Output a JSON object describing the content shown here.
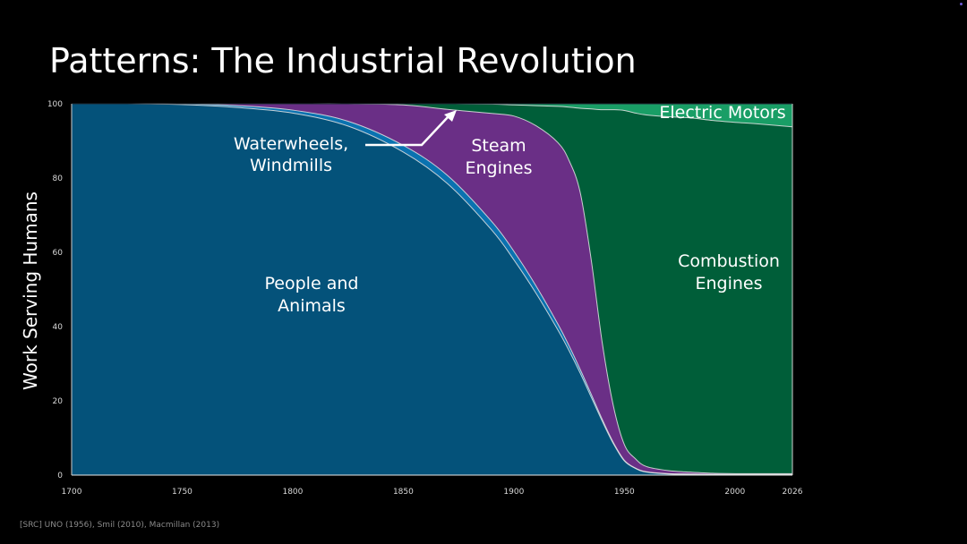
{
  "title": "Patterns: The Industrial Revolution",
  "source": "[SRC] UNO (1956), Smil (2010), Macmillan (2013)",
  "chart_data": {
    "type": "area",
    "stacked": true,
    "title": "Patterns: The Industrial Revolution",
    "ylabel": "Work Serving Humans",
    "xlabel": "",
    "xlim": [
      1700,
      2026
    ],
    "ylim": [
      0,
      100
    ],
    "x_ticks": [
      "1700",
      "1750",
      "1800",
      "1850",
      "1900",
      "1950",
      "2000",
      "2026"
    ],
    "y_ticks": [
      "0",
      "20",
      "40",
      "60",
      "80",
      "100"
    ],
    "x": [
      1700,
      1725,
      1750,
      1775,
      1800,
      1825,
      1850,
      1870,
      1890,
      1900,
      1910,
      1920,
      1925,
      1930,
      1935,
      1940,
      1945,
      1950,
      1955,
      1960,
      1970,
      1980,
      1990,
      2000,
      2010,
      2026
    ],
    "series": [
      {
        "name": "People and Animals",
        "color": "#04527a",
        "values": [
          100,
          100,
          99.8,
          99,
          97.5,
          94,
          87,
          78.5,
          66,
          58,
          49,
          39,
          33.5,
          27.5,
          21,
          14.5,
          8.5,
          3.8,
          1.8,
          0.8,
          0.3,
          0.2,
          0.1,
          0.1,
          0.1,
          0.1
        ]
      },
      {
        "name": "Waterwheels, Windmills",
        "color": "#0a72b0",
        "values": [
          0,
          0,
          0.2,
          0.5,
          0.8,
          1.3,
          1.8,
          2.2,
          2.3,
          2.3,
          2.0,
          1.6,
          1.3,
          1.0,
          0.8,
          0.5,
          0.3,
          0.2,
          0.1,
          0.1,
          0.1,
          0.1,
          0.1,
          0.1,
          0.1,
          0.1
        ]
      },
      {
        "name": "Steam Engines",
        "color": "#6a2f86",
        "values": [
          0,
          0,
          0,
          0.5,
          1.7,
          4.7,
          10.9,
          17.8,
          29.1,
          36.4,
          43.1,
          48.9,
          49.9,
          47.7,
          36.2,
          20.6,
          9.9,
          4.2,
          2.5,
          1.4,
          0.8,
          0.5,
          0.3,
          0.2,
          0.2,
          0.2
        ]
      },
      {
        "name": "Combustion Engines",
        "color": "#005e39",
        "values": [
          0,
          0,
          0,
          0,
          0,
          0,
          0.3,
          1.5,
          2.5,
          3.0,
          5.4,
          9.8,
          14.4,
          22.6,
          40.6,
          62.8,
          79.7,
          90.0,
          93.1,
          94.7,
          95.3,
          95.4,
          95.0,
          94.6,
          94.2,
          93.4
        ]
      },
      {
        "name": "Electric Motors",
        "color": "#199e66",
        "values": [
          0,
          0,
          0,
          0,
          0,
          0,
          0,
          0,
          0.1,
          0.3,
          0.5,
          0.7,
          0.9,
          1.2,
          1.4,
          1.6,
          1.6,
          1.8,
          2.5,
          3.0,
          3.5,
          4.0,
          4.5,
          5.0,
          5.4,
          6.2
        ]
      }
    ],
    "annotations": [
      {
        "text": "Waterwheels,\nWindmills",
        "target_x": 1872,
        "target_y": 97.5
      },
      {
        "text": "Steam\nEngines"
      },
      {
        "text": "People and\nAnimals"
      },
      {
        "text": "Combustion\nEngines"
      },
      {
        "text": "Electric Motors"
      }
    ],
    "grid": false,
    "legend": "none"
  }
}
